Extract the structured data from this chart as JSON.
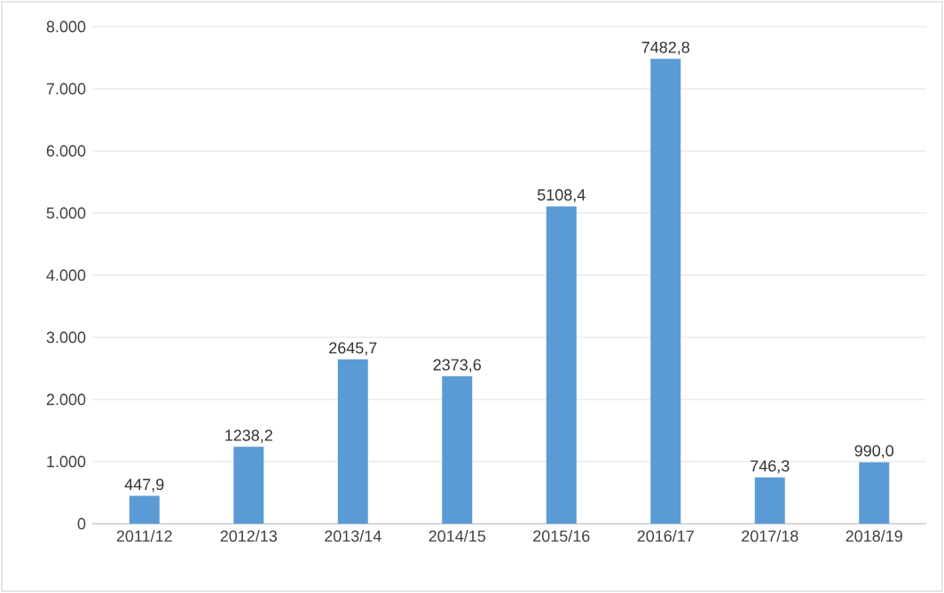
{
  "chart_data": {
    "type": "bar",
    "categories": [
      "2011/12",
      "2012/13",
      "2013/14",
      "2014/15",
      "2015/16",
      "2016/17",
      "2017/18",
      "2018/19"
    ],
    "values": [
      447.9,
      1238.2,
      2645.7,
      2373.6,
      5108.4,
      7482.8,
      746.3,
      990.0
    ],
    "value_labels": [
      "447,9",
      "1238,2",
      "2645,7",
      "2373,6",
      "5108,4",
      "7482,8",
      "746,3",
      "990,0"
    ],
    "color": "#5b9bd5",
    "ylim": [
      0,
      8000
    ],
    "yticks": [
      0,
      {
        "value": 1000,
        "label": "1.000"
      },
      {
        "value": 2000,
        "label": "2.000"
      },
      {
        "value": 3000,
        "label": "3.000"
      },
      {
        "value": 4000,
        "label": "4.000"
      },
      {
        "value": 5000,
        "label": "5.000"
      },
      {
        "value": 6000,
        "label": "6.000"
      },
      {
        "value": 7000,
        "label": "7.000"
      },
      {
        "value": 8000,
        "label": "8.000"
      }
    ],
    "grid": "y"
  }
}
